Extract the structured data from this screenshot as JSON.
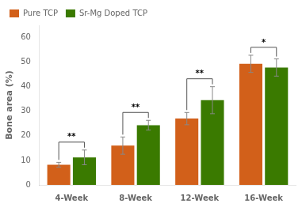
{
  "chart_data": {
    "type": "bar",
    "categories": [
      "4-Week",
      "8-Week",
      "12-Week",
      "16-Week"
    ],
    "ylabel": "Bone area (%)",
    "ylim": [
      0,
      65
    ],
    "yticks": [
      0,
      10,
      20,
      30,
      40,
      50,
      60
    ],
    "grid": false,
    "legend": "top",
    "series": [
      {
        "name": "Pure TCP",
        "color": "#D2601A",
        "values": [
          8.2,
          16.0,
          27.0,
          49.3
        ],
        "errors": [
          1.0,
          3.5,
          2.5,
          3.5
        ]
      },
      {
        "name": "Sr-Mg Doped TCP",
        "color": "#3A7A00",
        "values": [
          11.2,
          24.3,
          34.5,
          47.8
        ],
        "errors": [
          3.0,
          2.0,
          5.5,
          3.5
        ]
      }
    ],
    "significance": [
      "**",
      "**",
      "**",
      "*"
    ]
  }
}
